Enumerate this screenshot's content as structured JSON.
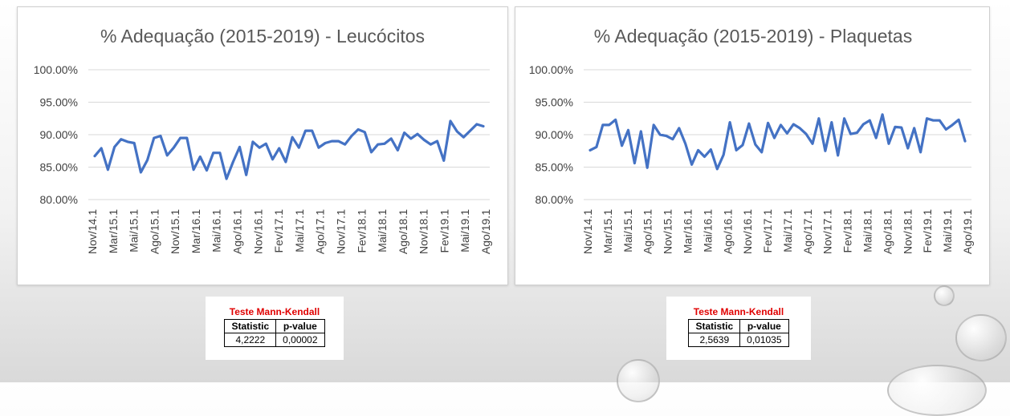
{
  "chart_data": [
    {
      "type": "line",
      "title": "% Adequação (2015-2019) - Leucócitos",
      "xlabel": "",
      "ylabel": "",
      "ylim": [
        80,
        100
      ],
      "y_ticks": [
        "100.00%",
        "95.00%",
        "90.00%",
        "85.00%",
        "80.00%"
      ],
      "x_tick_labels": [
        "Nov/14.1",
        "Mar/15.1",
        "Mai/15.1",
        "Ago/15.1",
        "Nov/15.1",
        "Mar/16.1",
        "Mai/16.1",
        "Ago/16.1",
        "Nov/16.1",
        "Fev/17.1",
        "Mai/17.1",
        "Ago/17.1",
        "Nov/17.1",
        "Fev/18.1",
        "Mai/18.1",
        "Ago/18.1",
        "Nov/18.1",
        "Fev/19.1",
        "Mai/19.1",
        "Ago/19.1"
      ],
      "grid": true,
      "color": "#4472c4",
      "values": [
        86.7,
        87.9,
        84.6,
        88.1,
        89.3,
        88.9,
        88.7,
        84.2,
        86.1,
        89.5,
        89.8,
        86.8,
        88.0,
        89.5,
        89.5,
        84.6,
        86.6,
        84.5,
        87.2,
        87.2,
        83.2,
        85.8,
        88.1,
        83.8,
        88.9,
        88.0,
        88.6,
        86.2,
        87.9,
        85.8,
        89.6,
        88.0,
        90.6,
        90.6,
        88.0,
        88.7,
        89.0,
        89.0,
        88.5,
        89.8,
        90.8,
        90.4,
        87.3,
        88.5,
        88.6,
        89.4,
        87.6,
        90.3,
        89.4,
        90.1,
        89.2,
        88.5,
        89.0,
        86.0,
        92.1,
        90.5,
        89.6,
        90.6,
        91.6,
        91.3
      ]
    },
    {
      "type": "line",
      "title": "% Adequação (2015-2019) - Plaquetas",
      "xlabel": "",
      "ylabel": "",
      "ylim": [
        80,
        100
      ],
      "y_ticks": [
        "100.00%",
        "95.00%",
        "90.00%",
        "85.00%",
        "80.00%"
      ],
      "x_tick_labels": [
        "Nov/14.1",
        "Mar/15.1",
        "Mai/15.1",
        "Ago/15.1",
        "Nov/15.1",
        "Mar/16.1",
        "Mai/16.1",
        "Ago/16.1",
        "Nov/16.1",
        "Fev/17.1",
        "Mai/17.1",
        "Ago/17.1",
        "Nov/17.1",
        "Fev/18.1",
        "Mai/18.1",
        "Ago/18.1",
        "Nov/18.1",
        "Fev/19.1",
        "Mai/19.1",
        "Ago/19.1"
      ],
      "grid": true,
      "color": "#4472c4",
      "values": [
        87.6,
        88.1,
        91.5,
        91.5,
        92.3,
        88.3,
        90.7,
        85.6,
        90.5,
        84.9,
        91.5,
        90.0,
        89.8,
        89.3,
        91.0,
        88.6,
        85.4,
        87.6,
        86.6,
        87.7,
        84.7,
        86.9,
        91.9,
        87.6,
        88.4,
        91.7,
        88.5,
        87.3,
        91.8,
        89.5,
        91.5,
        90.2,
        91.6,
        91.0,
        90.1,
        88.6,
        92.5,
        87.5,
        91.9,
        86.8,
        92.5,
        90.1,
        90.3,
        91.6,
        92.2,
        89.5,
        93.1,
        88.6,
        91.2,
        91.1,
        87.9,
        91.0,
        87.3,
        92.5,
        92.2,
        92.2,
        90.8,
        91.5,
        92.3,
        89.0
      ]
    }
  ],
  "tests": [
    {
      "title": "Teste Mann-Kendall",
      "headers": [
        "Statistic",
        "p-value"
      ],
      "values": [
        "4,2222",
        "0,00002"
      ]
    },
    {
      "title": "Teste Mann-Kendall",
      "headers": [
        "Statistic",
        "p-value"
      ],
      "values": [
        "2,5639",
        "0,01035"
      ]
    }
  ]
}
